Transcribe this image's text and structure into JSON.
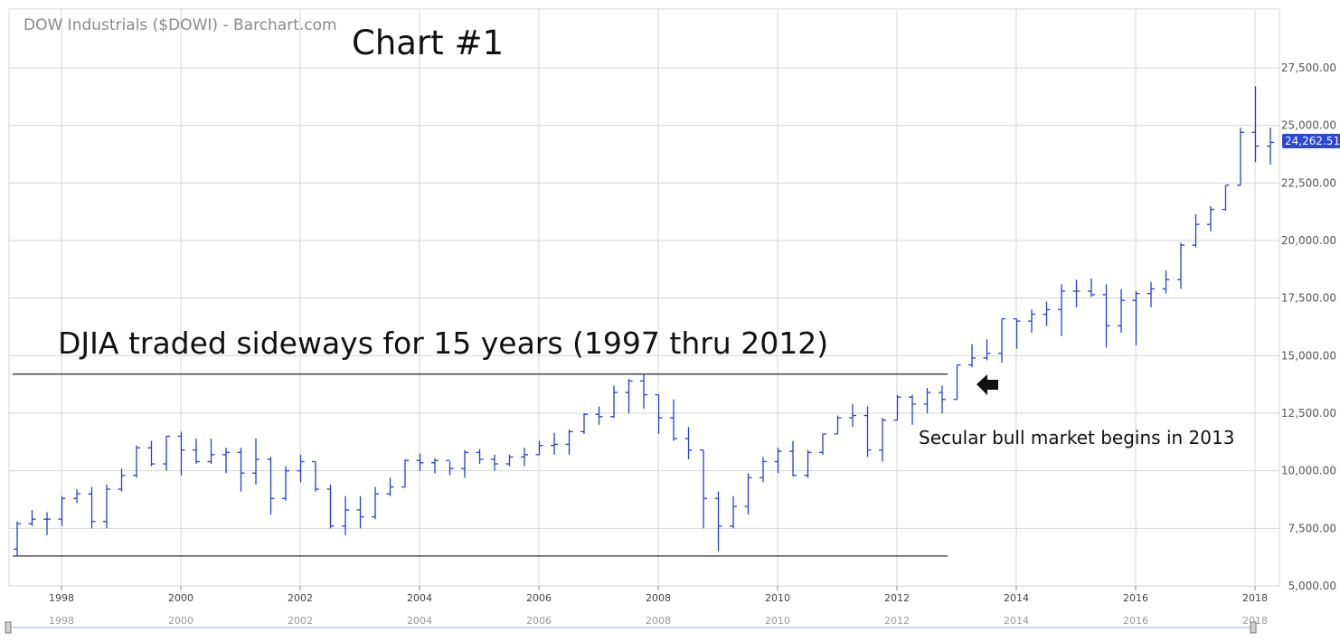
{
  "header": {
    "source_title": "DOW Industrials ($DOWI) - Barchart.com",
    "chart_title": "Chart #1"
  },
  "annotations": {
    "sideways": "DJIA traded sideways for 15 years (1997 thru 2012)",
    "bull": "Secular bull market begins in 2013"
  },
  "last_price_label": "24,262.51",
  "colors": {
    "bars": "#2a3fc9",
    "grid": "#d4d4d4",
    "levels": "#333333",
    "badge": "#2a47d6",
    "nav": "#9aa8e6"
  },
  "chart_data": {
    "type": "ohlc",
    "interval": "quarterly",
    "y_axis_side": "right",
    "ylim": [
      5000,
      30000
    ],
    "y_ticks": [
      "5,000.00",
      "7,500.00",
      "10,000.00",
      "12,500.00",
      "15,000.00",
      "17,500.00",
      "20,000.00",
      "22,500.00",
      "25,000.00",
      "27,500.00"
    ],
    "x_ticks": [
      "1998",
      "2000",
      "2002",
      "2004",
      "2006",
      "2008",
      "2010",
      "2012",
      "2014",
      "2016",
      "2018"
    ],
    "grid": true,
    "levels": [
      14200,
      6300
    ],
    "series": [
      {
        "bars": [
          {
            "t": "1997-Q2",
            "o": 6600,
            "h": 7800,
            "l": 6300,
            "c": 7700
          },
          {
            "t": "1997-Q3",
            "o": 7700,
            "h": 8300,
            "l": 7600,
            "c": 7900
          },
          {
            "t": "1997-Q4",
            "o": 7900,
            "h": 8200,
            "l": 7200,
            "c": 7900
          },
          {
            "t": "1998-Q1",
            "o": 7900,
            "h": 8900,
            "l": 7600,
            "c": 8800
          },
          {
            "t": "1998-Q2",
            "o": 8800,
            "h": 9200,
            "l": 8600,
            "c": 9000
          },
          {
            "t": "1998-Q3",
            "o": 9000,
            "h": 9300,
            "l": 7500,
            "c": 7800
          },
          {
            "t": "1998-Q4",
            "o": 7800,
            "h": 9400,
            "l": 7500,
            "c": 9200
          },
          {
            "t": "1999-Q1",
            "o": 9200,
            "h": 10100,
            "l": 9100,
            "c": 9800
          },
          {
            "t": "1999-Q2",
            "o": 9800,
            "h": 11100,
            "l": 9700,
            "c": 11000
          },
          {
            "t": "1999-Q3",
            "o": 11000,
            "h": 11300,
            "l": 10200,
            "c": 10300
          },
          {
            "t": "1999-Q4",
            "o": 10300,
            "h": 11500,
            "l": 10000,
            "c": 11500
          },
          {
            "t": "2000-Q1",
            "o": 11500,
            "h": 11700,
            "l": 9800,
            "c": 10900
          },
          {
            "t": "2000-Q2",
            "o": 10900,
            "h": 11400,
            "l": 10300,
            "c": 10400
          },
          {
            "t": "2000-Q3",
            "o": 10400,
            "h": 11400,
            "l": 10300,
            "c": 10700
          },
          {
            "t": "2000-Q4",
            "o": 10700,
            "h": 11000,
            "l": 9900,
            "c": 10800
          },
          {
            "t": "2001-Q1",
            "o": 10800,
            "h": 11000,
            "l": 9100,
            "c": 9900
          },
          {
            "t": "2001-Q2",
            "o": 9900,
            "h": 11400,
            "l": 9400,
            "c": 10500
          },
          {
            "t": "2001-Q3",
            "o": 10500,
            "h": 10600,
            "l": 8100,
            "c": 8800
          },
          {
            "t": "2001-Q4",
            "o": 8800,
            "h": 10200,
            "l": 8700,
            "c": 10000
          },
          {
            "t": "2002-Q1",
            "o": 10000,
            "h": 10700,
            "l": 9500,
            "c": 10400
          },
          {
            "t": "2002-Q2",
            "o": 10400,
            "h": 10400,
            "l": 9100,
            "c": 9200
          },
          {
            "t": "2002-Q3",
            "o": 9200,
            "h": 9400,
            "l": 7500,
            "c": 7600
          },
          {
            "t": "2002-Q4",
            "o": 7600,
            "h": 8900,
            "l": 7200,
            "c": 8300
          },
          {
            "t": "2003-Q1",
            "o": 8300,
            "h": 8900,
            "l": 7500,
            "c": 8000
          },
          {
            "t": "2003-Q2",
            "o": 8000,
            "h": 9300,
            "l": 7900,
            "c": 9000
          },
          {
            "t": "2003-Q3",
            "o": 9000,
            "h": 9700,
            "l": 8900,
            "c": 9300
          },
          {
            "t": "2003-Q4",
            "o": 9300,
            "h": 10500,
            "l": 9300,
            "c": 10450
          },
          {
            "t": "2004-Q1",
            "o": 10450,
            "h": 10750,
            "l": 10000,
            "c": 10350
          },
          {
            "t": "2004-Q2",
            "o": 10350,
            "h": 10550,
            "l": 9900,
            "c": 10450
          },
          {
            "t": "2004-Q3",
            "o": 10450,
            "h": 10400,
            "l": 9800,
            "c": 10100
          },
          {
            "t": "2004-Q4",
            "o": 10100,
            "h": 10900,
            "l": 9700,
            "c": 10800
          },
          {
            "t": "2005-Q1",
            "o": 10800,
            "h": 10950,
            "l": 10300,
            "c": 10500
          },
          {
            "t": "2005-Q2",
            "o": 10500,
            "h": 10700,
            "l": 10000,
            "c": 10300
          },
          {
            "t": "2005-Q3",
            "o": 10300,
            "h": 10700,
            "l": 10200,
            "c": 10600
          },
          {
            "t": "2005-Q4",
            "o": 10600,
            "h": 11000,
            "l": 10200,
            "c": 10700
          },
          {
            "t": "2006-Q1",
            "o": 10700,
            "h": 11300,
            "l": 10700,
            "c": 11100
          },
          {
            "t": "2006-Q2",
            "o": 11100,
            "h": 11650,
            "l": 10700,
            "c": 11150
          },
          {
            "t": "2006-Q3",
            "o": 11150,
            "h": 11800,
            "l": 10700,
            "c": 11700
          },
          {
            "t": "2006-Q4",
            "o": 11700,
            "h": 12500,
            "l": 11600,
            "c": 12450
          },
          {
            "t": "2007-Q1",
            "o": 12450,
            "h": 12800,
            "l": 12000,
            "c": 12350
          },
          {
            "t": "2007-Q2",
            "o": 12350,
            "h": 13700,
            "l": 12300,
            "c": 13400
          },
          {
            "t": "2007-Q3",
            "o": 13400,
            "h": 14000,
            "l": 12500,
            "c": 13900
          },
          {
            "t": "2007-Q4",
            "o": 13900,
            "h": 14200,
            "l": 12700,
            "c": 13300
          },
          {
            "t": "2008-Q1",
            "o": 13300,
            "h": 13300,
            "l": 11600,
            "c": 12300
          },
          {
            "t": "2008-Q2",
            "o": 12300,
            "h": 13100,
            "l": 11300,
            "c": 11400
          },
          {
            "t": "2008-Q3",
            "o": 11400,
            "h": 11900,
            "l": 10500,
            "c": 10900
          },
          {
            "t": "2008-Q4",
            "o": 10900,
            "h": 10900,
            "l": 7500,
            "c": 8800
          },
          {
            "t": "2009-Q1",
            "o": 8800,
            "h": 9100,
            "l": 6500,
            "c": 7600
          },
          {
            "t": "2009-Q2",
            "o": 7600,
            "h": 8900,
            "l": 7500,
            "c": 8450
          },
          {
            "t": "2009-Q3",
            "o": 8450,
            "h": 9900,
            "l": 8100,
            "c": 9700
          },
          {
            "t": "2009-Q4",
            "o": 9700,
            "h": 10600,
            "l": 9500,
            "c": 10400
          },
          {
            "t": "2010-Q1",
            "o": 10400,
            "h": 11000,
            "l": 9900,
            "c": 10850
          },
          {
            "t": "2010-Q2",
            "o": 10850,
            "h": 11300,
            "l": 9750,
            "c": 9800
          },
          {
            "t": "2010-Q3",
            "o": 9800,
            "h": 10900,
            "l": 9700,
            "c": 10800
          },
          {
            "t": "2010-Q4",
            "o": 10800,
            "h": 11600,
            "l": 10700,
            "c": 11600
          },
          {
            "t": "2011-Q1",
            "o": 11600,
            "h": 12400,
            "l": 11600,
            "c": 12300
          },
          {
            "t": "2011-Q2",
            "o": 12300,
            "h": 12900,
            "l": 11900,
            "c": 12400
          },
          {
            "t": "2011-Q3",
            "o": 12400,
            "h": 12800,
            "l": 10600,
            "c": 10900
          },
          {
            "t": "2011-Q4",
            "o": 10900,
            "h": 12300,
            "l": 10400,
            "c": 12200
          },
          {
            "t": "2012-Q1",
            "o": 12200,
            "h": 13300,
            "l": 12200,
            "c": 13200
          },
          {
            "t": "2012-Q2",
            "o": 13200,
            "h": 13300,
            "l": 12000,
            "c": 12900
          },
          {
            "t": "2012-Q3",
            "o": 12900,
            "h": 13600,
            "l": 12500,
            "c": 13400
          },
          {
            "t": "2012-Q4",
            "o": 13400,
            "h": 13700,
            "l": 12500,
            "c": 13100
          },
          {
            "t": "2013-Q1",
            "o": 13100,
            "h": 14600,
            "l": 13100,
            "c": 14600
          },
          {
            "t": "2013-Q2",
            "o": 14600,
            "h": 15500,
            "l": 14500,
            "c": 14900
          },
          {
            "t": "2013-Q3",
            "o": 14900,
            "h": 15700,
            "l": 14800,
            "c": 15100
          },
          {
            "t": "2013-Q4",
            "o": 15100,
            "h": 16600,
            "l": 14700,
            "c": 16600
          },
          {
            "t": "2014-Q1",
            "o": 16600,
            "h": 16600,
            "l": 15300,
            "c": 16500
          },
          {
            "t": "2014-Q2",
            "o": 16500,
            "h": 17000,
            "l": 16000,
            "c": 16800
          },
          {
            "t": "2014-Q3",
            "o": 16800,
            "h": 17350,
            "l": 16300,
            "c": 17000
          },
          {
            "t": "2014-Q4",
            "o": 17000,
            "h": 18100,
            "l": 15850,
            "c": 17800
          },
          {
            "t": "2015-Q1",
            "o": 17800,
            "h": 18300,
            "l": 17100,
            "c": 17800
          },
          {
            "t": "2015-Q2",
            "o": 17800,
            "h": 18350,
            "l": 17550,
            "c": 17650
          },
          {
            "t": "2015-Q3",
            "o": 17650,
            "h": 18100,
            "l": 15350,
            "c": 16300
          },
          {
            "t": "2015-Q4",
            "o": 16300,
            "h": 17900,
            "l": 16000,
            "c": 17400
          },
          {
            "t": "2016-Q1",
            "o": 17400,
            "h": 17800,
            "l": 15450,
            "c": 17700
          },
          {
            "t": "2016-Q2",
            "o": 17700,
            "h": 18200,
            "l": 17100,
            "c": 17900
          },
          {
            "t": "2016-Q3",
            "o": 17900,
            "h": 18700,
            "l": 17700,
            "c": 18300
          },
          {
            "t": "2016-Q4",
            "o": 18300,
            "h": 19900,
            "l": 17900,
            "c": 19800
          },
          {
            "t": "2017-Q1",
            "o": 19800,
            "h": 21150,
            "l": 19700,
            "c": 20700
          },
          {
            "t": "2017-Q2",
            "o": 20700,
            "h": 21500,
            "l": 20400,
            "c": 21350
          },
          {
            "t": "2017-Q3",
            "o": 21350,
            "h": 22400,
            "l": 21300,
            "c": 22400
          },
          {
            "t": "2017-Q4",
            "o": 22400,
            "h": 24900,
            "l": 22400,
            "c": 24700
          },
          {
            "t": "2018-Q1",
            "o": 24700,
            "h": 26700,
            "l": 23400,
            "c": 24100
          },
          {
            "t": "2018-Q2",
            "o": 24100,
            "h": 24900,
            "l": 23300,
            "c": 24262
          }
        ]
      }
    ]
  }
}
